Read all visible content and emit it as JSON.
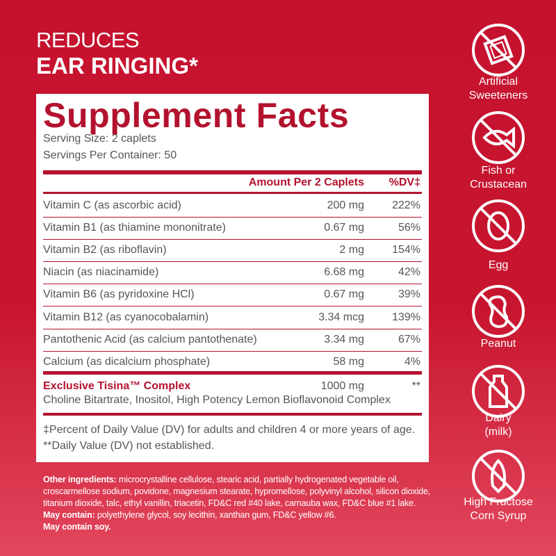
{
  "header": {
    "line1": "REDUCES",
    "line2": "EAR RINGING*"
  },
  "facts": {
    "title": "Supplement Facts",
    "serving_size": "Serving Size: 2 caplets",
    "servings_per_container": "Servings Per Container: 50",
    "columns": [
      "Amount Per 2 Caplets",
      "%DV‡"
    ],
    "rows": [
      [
        "Vitamin C (as ascorbic acid)",
        "200 mg",
        "222%"
      ],
      [
        "Vitamin B1 (as thiamine mononitrate)",
        "0.67 mg",
        "56%"
      ],
      [
        "Vitamin B2 (as riboflavin)",
        "2 mg",
        "154%"
      ],
      [
        "Niacin (as niacinamide)",
        "6.68 mg",
        "42%"
      ],
      [
        "Vitamin B6 (as pyridoxine HCl)",
        "0.67 mg",
        "39%"
      ],
      [
        "Vitamin B12 (as cyanocobalamin)",
        "3.34 mcg",
        "139%"
      ],
      [
        "Pantothenic Acid (as calcium pantothenate)",
        "3.34 mg",
        "67%"
      ],
      [
        "Calcium (as dicalcium phosphate)",
        "58 mg",
        "4%"
      ]
    ],
    "complex": {
      "name": "Exclusive Tisina™ Complex",
      "amount": "1000 mg",
      "dv": "**",
      "ingredients": "Choline Bitartrate, Inositol, High Potency Lemon Bioflavonoid Complex"
    },
    "footnotes": [
      "‡Percent of Daily Value (DV) for adults and children 4 or more years of age.",
      "**Daily Value (DV) not established."
    ]
  },
  "other_ingredients": {
    "label": "Other ingredients:",
    "text": "microcrystalline cellulose, stearic acid, partially hydrogenated vegetable oil, croscarmellose sodium, povidone, magnesium stearate, hypromellose, polyvinyl alcohol, silicon dioxide, titanium dioxide, talc, ethyl vanillin, triacetin, FD&C red #40 lake, carnauba wax, FD&C blue #1 lake.",
    "may_contain_label": "May contain:",
    "may_contain_text": "polyethylene glycol, soy lecithin, xanthan gum, FD&C yellow #6.",
    "soy": "May contain soy."
  },
  "free_from": [
    {
      "label": [
        "Artificial",
        "Sweeteners"
      ]
    },
    {
      "label": [
        "Fish or",
        "Crustacean"
      ]
    },
    {
      "label": [
        "Egg"
      ]
    },
    {
      "label": [
        "Peanut"
      ]
    },
    {
      "label": [
        "Dairy",
        "(milk)"
      ]
    },
    {
      "label": [
        "High Fructose",
        "Corn Syrup"
      ]
    }
  ]
}
